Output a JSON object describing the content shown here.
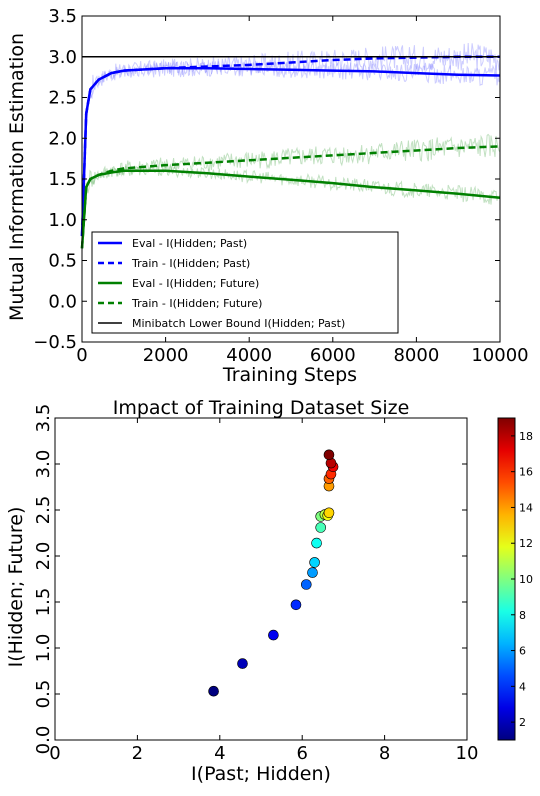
{
  "chart_data": [
    {
      "type": "line",
      "title": "",
      "xlabel": "Training Steps",
      "ylabel": "Mutual Information Estimation",
      "xlim": [
        0,
        10000
      ],
      "ylim": [
        -0.5,
        3.5
      ],
      "xticks": [
        "0",
        "2000",
        "4000",
        "6000",
        "8000",
        "10000"
      ],
      "yticks": [
        "−0.5",
        "0.0",
        "0.5",
        "1.0",
        "1.5",
        "2.0",
        "2.5",
        "3.0",
        "3.5"
      ],
      "legend_position": "lower-left",
      "series": [
        {
          "name": "Eval - I(Hidden; Past)",
          "color": "#0000ff",
          "style": "solid",
          "x": [
            0,
            100,
            200,
            400,
            700,
            1000,
            2000,
            3000,
            4000,
            5000,
            6000,
            7000,
            8000,
            9000,
            10000
          ],
          "y": [
            0.8,
            2.3,
            2.6,
            2.72,
            2.8,
            2.83,
            2.86,
            2.86,
            2.85,
            2.84,
            2.83,
            2.82,
            2.8,
            2.78,
            2.77
          ]
        },
        {
          "name": "Train - I(Hidden; Past)",
          "color": "#0000ff",
          "style": "dashed",
          "x": [
            0,
            100,
            200,
            400,
            700,
            1000,
            2000,
            3000,
            4000,
            5000,
            6000,
            7000,
            8000,
            9000,
            10000
          ],
          "y": [
            0.8,
            2.3,
            2.6,
            2.72,
            2.8,
            2.83,
            2.86,
            2.88,
            2.9,
            2.93,
            2.96,
            2.98,
            2.99,
            3.0,
            3.0
          ]
        },
        {
          "name": "Eval - I(Hidden; Future)",
          "color": "#008000",
          "style": "solid",
          "x": [
            0,
            100,
            200,
            400,
            700,
            1000,
            2000,
            3000,
            4000,
            5000,
            6000,
            7000,
            8000,
            9000,
            10000
          ],
          "y": [
            0.65,
            1.4,
            1.5,
            1.55,
            1.58,
            1.6,
            1.6,
            1.57,
            1.53,
            1.49,
            1.45,
            1.4,
            1.36,
            1.32,
            1.27
          ]
        },
        {
          "name": "Train - I(Hidden; Future)",
          "color": "#008000",
          "style": "dashed",
          "x": [
            0,
            100,
            200,
            400,
            700,
            1000,
            2000,
            3000,
            4000,
            5000,
            6000,
            7000,
            8000,
            9000,
            10000
          ],
          "y": [
            0.65,
            1.4,
            1.5,
            1.55,
            1.6,
            1.63,
            1.67,
            1.7,
            1.73,
            1.76,
            1.79,
            1.82,
            1.85,
            1.88,
            1.9
          ]
        },
        {
          "name": "Minibatch Lower Bound I(Hidden; Past)",
          "color": "#000000",
          "style": "solid",
          "x": [
            0,
            10000
          ],
          "y": [
            3.0,
            3.0
          ]
        }
      ]
    },
    {
      "type": "scatter",
      "title": "Impact of Training Dataset Size",
      "xlabel": "I(Past; Hidden)",
      "ylabel": "I(Hidden; Future)",
      "xlim": [
        0,
        10
      ],
      "ylim": [
        0.0,
        3.5
      ],
      "xticks": [
        "0",
        "2",
        "4",
        "6",
        "8",
        "10"
      ],
      "yticks": [
        "0.0",
        "0.5",
        "1.0",
        "1.5",
        "2.0",
        "2.5",
        "3.0",
        "3.5"
      ],
      "colorbar_ticks": [
        "2",
        "4",
        "6",
        "8",
        "10",
        "12",
        "14",
        "16",
        "18"
      ],
      "colorbar_range": [
        1,
        19
      ],
      "points": [
        {
          "x": 3.85,
          "y": 0.53,
          "c": 1
        },
        {
          "x": 4.55,
          "y": 0.83,
          "c": 2
        },
        {
          "x": 5.3,
          "y": 1.14,
          "c": 3
        },
        {
          "x": 5.85,
          "y": 1.47,
          "c": 4
        },
        {
          "x": 6.1,
          "y": 1.69,
          "c": 5
        },
        {
          "x": 6.25,
          "y": 1.82,
          "c": 6
        },
        {
          "x": 6.3,
          "y": 1.93,
          "c": 7
        },
        {
          "x": 6.35,
          "y": 2.14,
          "c": 8
        },
        {
          "x": 6.45,
          "y": 2.31,
          "c": 9
        },
        {
          "x": 6.45,
          "y": 2.43,
          "c": 10
        },
        {
          "x": 6.55,
          "y": 2.45,
          "c": 11
        },
        {
          "x": 6.62,
          "y": 2.44,
          "c": 12
        },
        {
          "x": 6.65,
          "y": 2.47,
          "c": 13
        },
        {
          "x": 6.65,
          "y": 2.76,
          "c": 14
        },
        {
          "x": 6.65,
          "y": 2.84,
          "c": 15
        },
        {
          "x": 6.7,
          "y": 2.89,
          "c": 16
        },
        {
          "x": 6.75,
          "y": 2.97,
          "c": 17
        },
        {
          "x": 6.7,
          "y": 3.01,
          "c": 18
        },
        {
          "x": 6.65,
          "y": 3.1,
          "c": 19
        }
      ]
    }
  ]
}
